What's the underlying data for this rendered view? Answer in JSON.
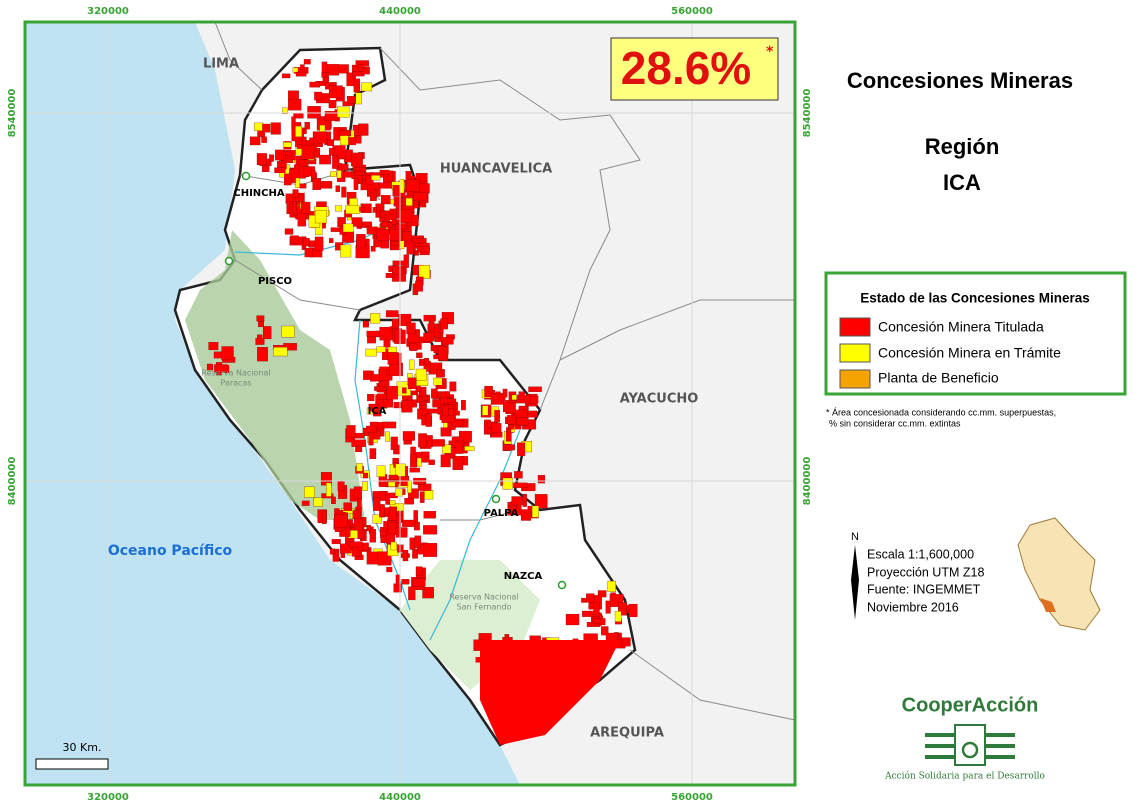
{
  "grid": {
    "top": [
      "320000",
      "440000",
      "560000"
    ],
    "bottom": [
      "320000",
      "440000",
      "560000"
    ],
    "left": [
      "8540000",
      "8400000"
    ],
    "right": [
      "8540000",
      "8400000"
    ]
  },
  "map_labels": {
    "regions": [
      "LIMA",
      "HUANCAVELICA",
      "AYACUCHO",
      "AREQUIPA"
    ],
    "cities": [
      "CHINCHA",
      "PISCO",
      "ICA",
      "PALPA",
      "NAZCA"
    ],
    "ocean": "Oceano Pacífico",
    "reserves": [
      [
        "Reserva Nacional",
        "Paracas"
      ],
      [
        "Reserva Nacional",
        "San Fernando"
      ]
    ]
  },
  "scale_bar": "30 Km.",
  "badge": {
    "value": "28.6%",
    "note": "*"
  },
  "title": {
    "line1": "Concesiones Mineras",
    "line2": "Región",
    "line3": "ICA"
  },
  "legend": {
    "title": "Estado de las Concesiones Mineras",
    "items": [
      "Concesión Minera Titulada",
      "Concesión Minera en Trámite",
      "Planta de Beneficio"
    ]
  },
  "footnote": [
    "* Área concesionada considerando cc.mm. superpuestas,",
    "% sin considerar cc.mm. extintas"
  ],
  "info": {
    "north": "N",
    "lines": [
      "Escala 1:1,600,000",
      "Proyección UTM Z18",
      "Fuente: INGEMMET",
      "Noviembre 2016"
    ]
  },
  "logo": {
    "name": "CooperAcción",
    "tagline": "Acción Solidaria para el Desarrollo"
  }
}
